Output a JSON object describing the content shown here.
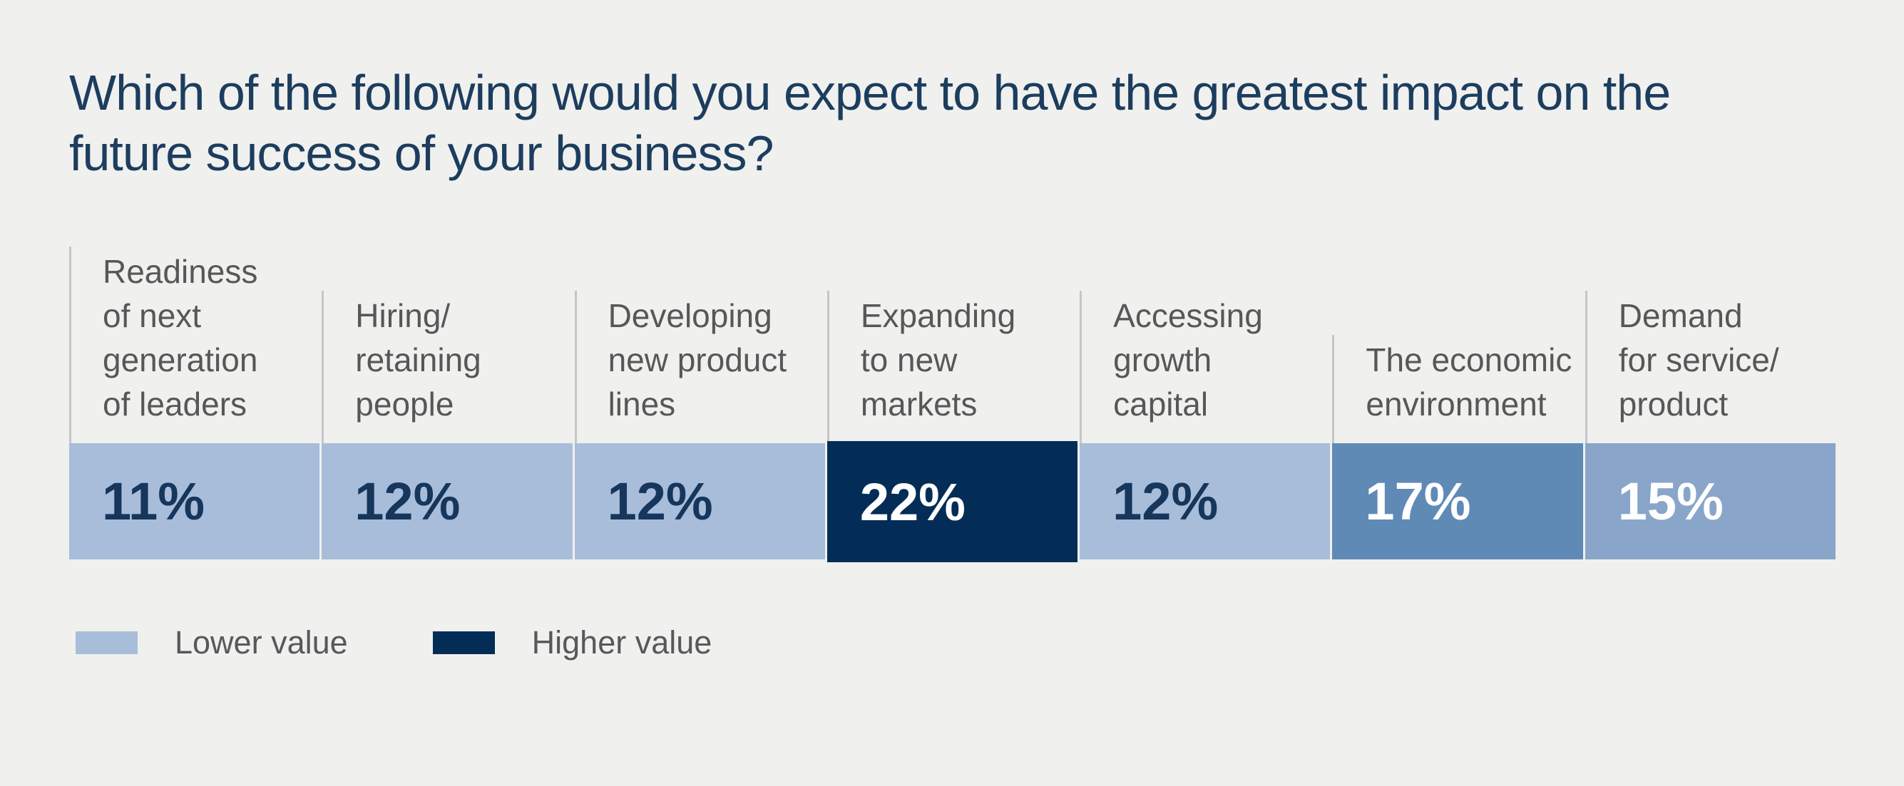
{
  "page": {
    "background_color": "#f0f0ee"
  },
  "title": "Which of the following would you expect to have the greatest impact on the\nfuture success of your business?",
  "chart_data": {
    "type": "bar",
    "title": "Which of the following would you expect to have the greatest impact on the future success of your business?",
    "unit": "percent",
    "orientation": "horizontal-row-of-cells",
    "grid": false,
    "legend_position": "bottom-left",
    "categories": [
      "Readiness of next generation of leaders",
      "Hiring/retaining people",
      "Developing new product lines",
      "Expanding to new markets",
      "Accessing growth capital",
      "The economic environment",
      "Demand for service/product"
    ],
    "values": [
      11,
      12,
      12,
      22,
      12,
      17,
      15
    ],
    "highlighted_category": "Expanding to new markets",
    "columns": [
      {
        "label": "Readiness\nof next\ngeneration\nof leaders",
        "value": 11,
        "value_label": "11%",
        "color": "#a8bdda",
        "text_color": "#16365c",
        "highlight": false
      },
      {
        "label": "Hiring/\nretaining\npeople",
        "value": 12,
        "value_label": "12%",
        "color": "#a8bdda",
        "text_color": "#16365c",
        "highlight": false
      },
      {
        "label": "Developing\nnew product\nlines",
        "value": 12,
        "value_label": "12%",
        "color": "#a8bdda",
        "text_color": "#16365c",
        "highlight": false
      },
      {
        "label": "Expanding\nto new\nmarkets",
        "value": 22,
        "value_label": "22%",
        "color": "#032d57",
        "text_color": "#ffffff",
        "highlight": true
      },
      {
        "label": "Accessing\ngrowth\ncapital",
        "value": 12,
        "value_label": "12%",
        "color": "#a8bdda",
        "text_color": "#16365c",
        "highlight": false
      },
      {
        "label": "The economic\nenvironment",
        "value": 17,
        "value_label": "17%",
        "color": "#5f8ab6",
        "text_color": "#ffffff",
        "highlight": false
      },
      {
        "label": "Demand\nfor service/\nproduct",
        "value": 15,
        "value_label": "15%",
        "color": "#89a5c9",
        "text_color": "#ffffff",
        "highlight": false
      }
    ],
    "legend": [
      {
        "label": "Lower value",
        "color": "#a8bdda"
      },
      {
        "label": "Higher value",
        "color": "#032d57"
      }
    ],
    "palette": {
      "lowest_value_fill": "#a8bdda",
      "mid_value_fill": "#89a5c9",
      "high_value_fill": "#5f8ab6",
      "highest_value_fill": "#032d57",
      "dark_text": "#16365c",
      "light_text": "#ffffff",
      "divider": "#c6c6c6",
      "label_text": "#575757",
      "title_text": "#1c3d5e"
    }
  }
}
